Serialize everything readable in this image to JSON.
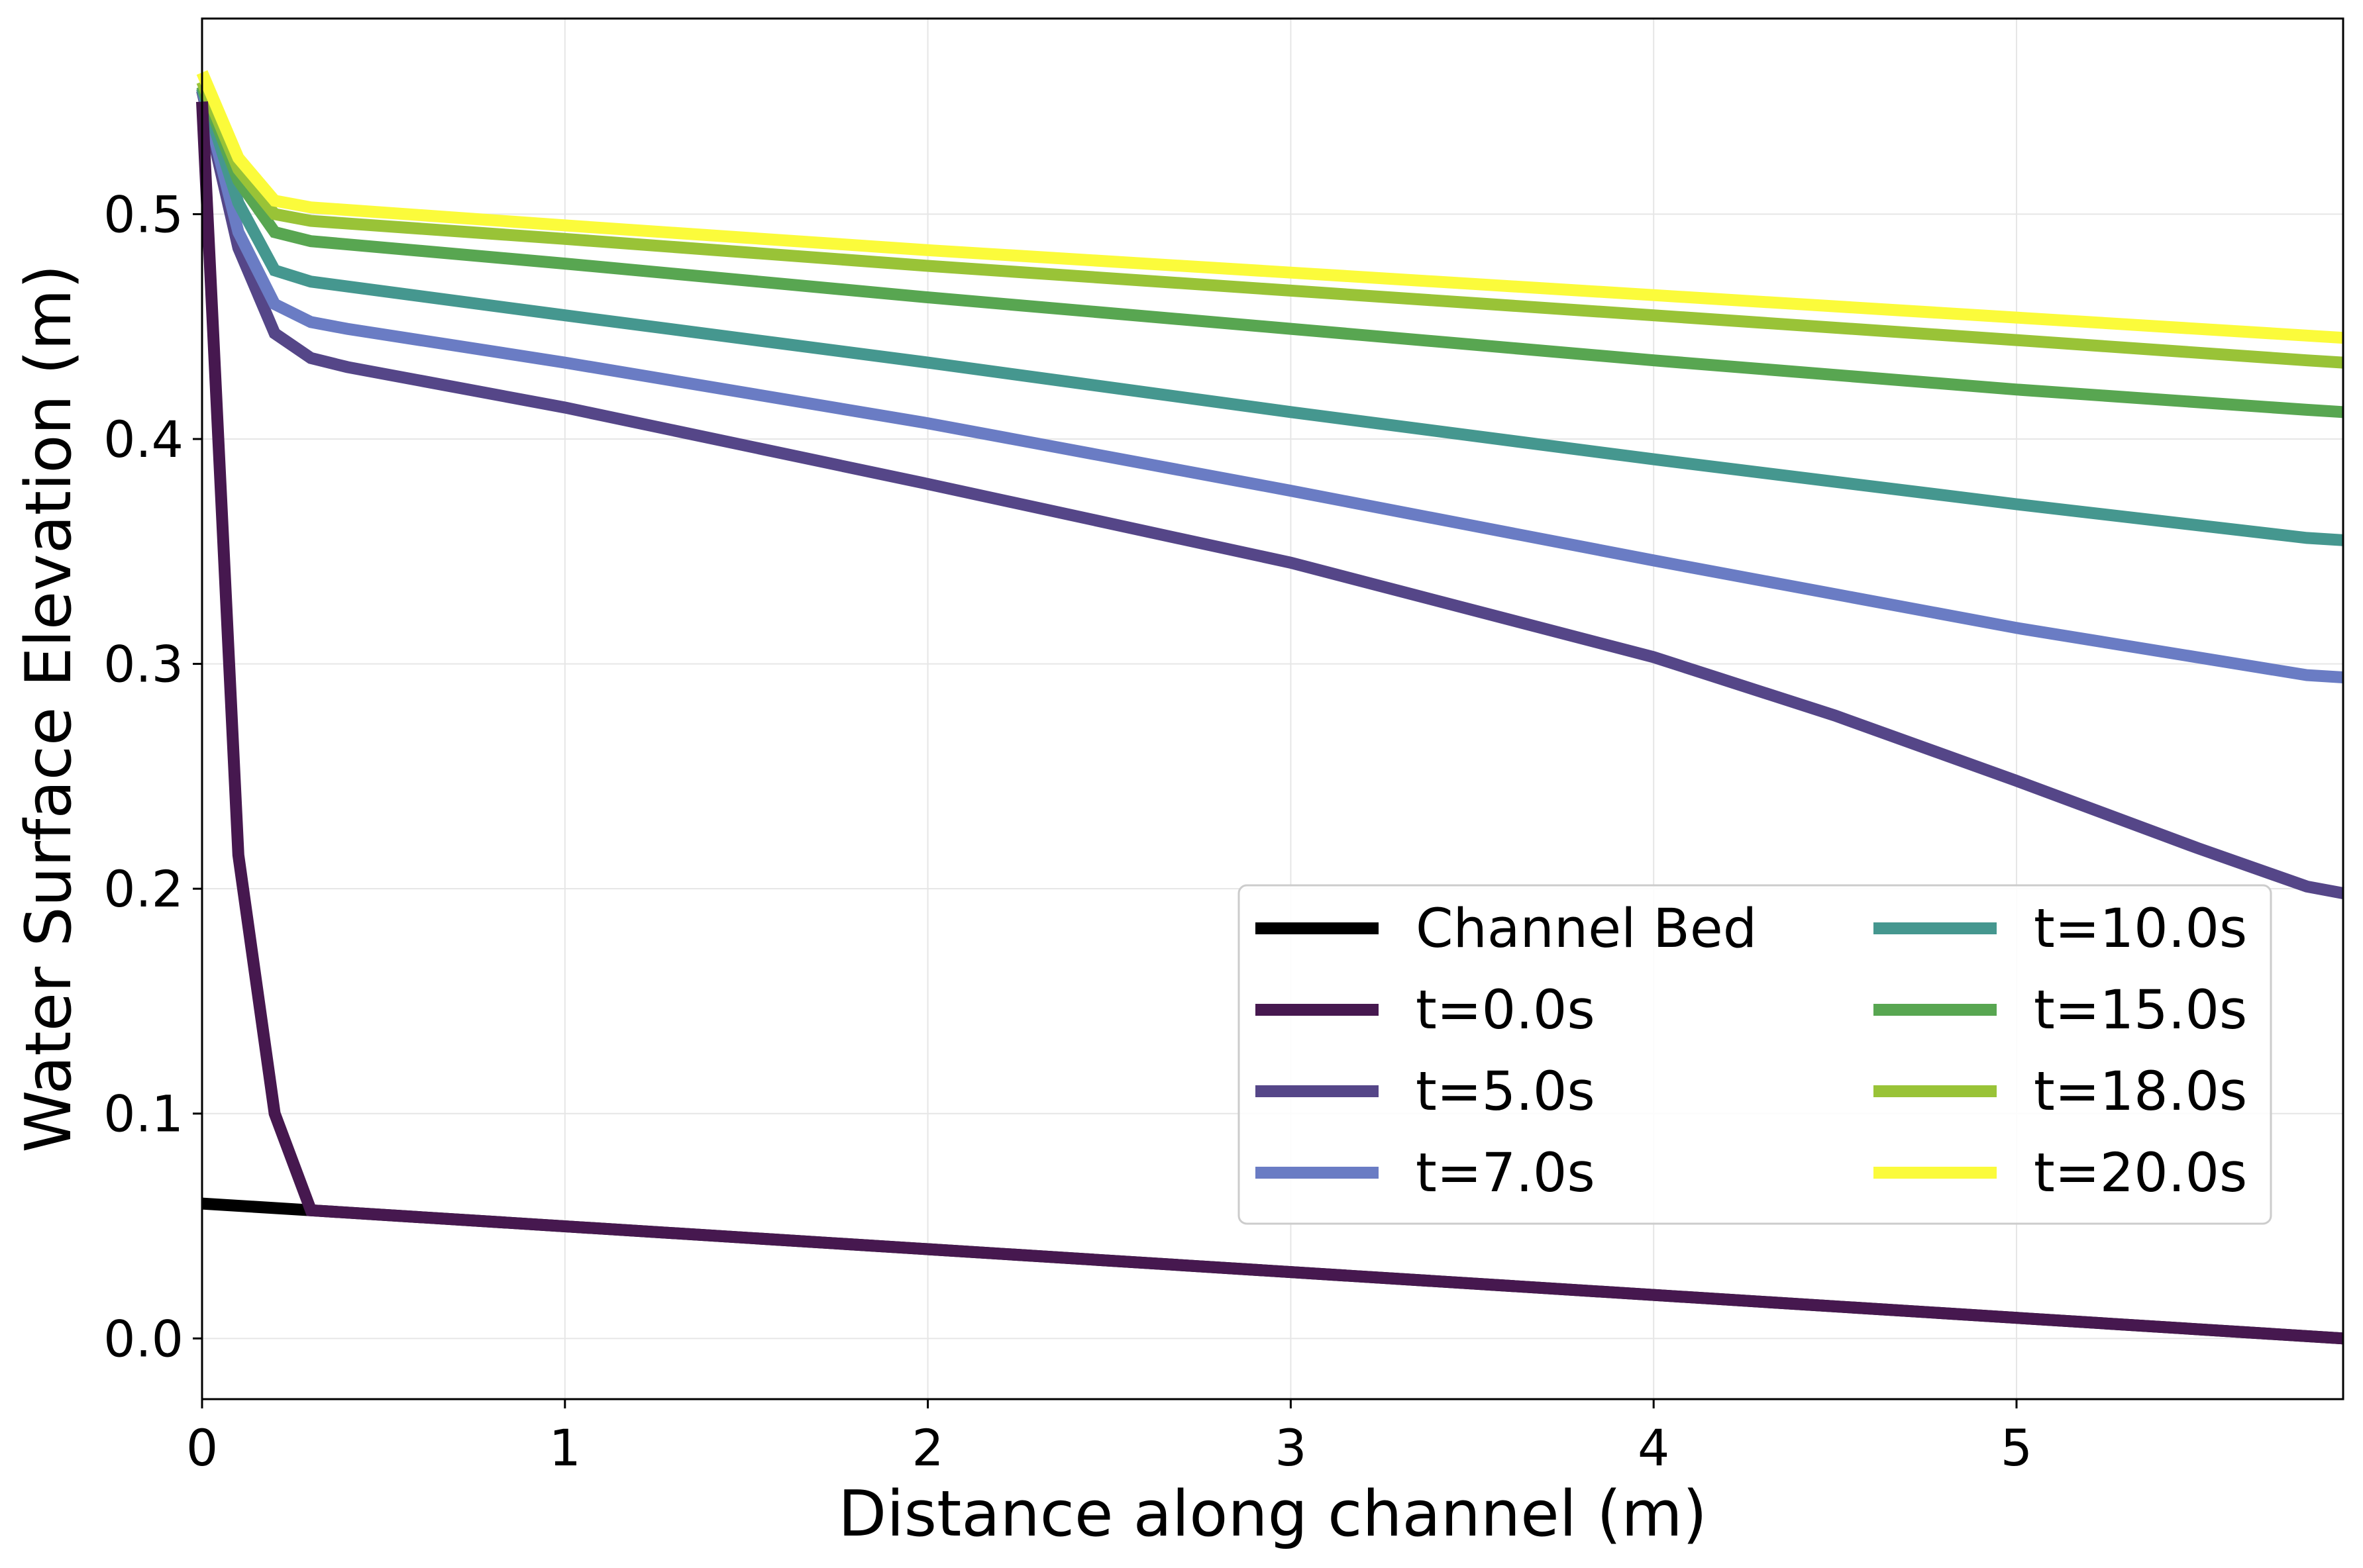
{
  "chart_data": {
    "type": "line",
    "title": "",
    "xlabel": "Distance along channel (m)",
    "ylabel": "Water Surface Elevation (m)",
    "xlim": [
      0,
      5.9
    ],
    "ylim": [
      -0.027,
      0.587
    ],
    "xticks": [
      0,
      1,
      2,
      3,
      4,
      5
    ],
    "yticks": [
      0.0,
      0.1,
      0.2,
      0.3,
      0.4,
      0.5
    ],
    "xtick_labels": [
      "0",
      "1",
      "2",
      "3",
      "4",
      "5"
    ],
    "ytick_labels": [
      "0.0",
      "0.1",
      "0.2",
      "0.3",
      "0.4",
      "0.5"
    ],
    "grid": true,
    "legend": {
      "placement": "lower-right",
      "columns": 2
    },
    "series": [
      {
        "name": "Channel Bed",
        "color": "#000000",
        "x": [
          0,
          0.3,
          5.9
        ],
        "y": [
          0.06,
          0.057,
          0.0
        ]
      },
      {
        "name": "t=0.0s",
        "color": "#46184f",
        "x": [
          0,
          0.1,
          0.2,
          0.3,
          5.9
        ],
        "y": [
          0.55,
          0.215,
          0.1,
          0.057,
          0.0
        ]
      },
      {
        "name": "t=5.0s",
        "color": "#554688",
        "x": [
          0,
          0.1,
          0.2,
          0.3,
          0.4,
          1.0,
          2.0,
          3.0,
          4.0,
          4.5,
          5.0,
          5.5,
          5.8,
          5.9
        ],
        "y": [
          0.555,
          0.485,
          0.447,
          0.436,
          0.432,
          0.414,
          0.38,
          0.345,
          0.303,
          0.277,
          0.248,
          0.218,
          0.201,
          0.198
        ]
      },
      {
        "name": "t=7.0s",
        "color": "#6a7cc4",
        "x": [
          0,
          0.1,
          0.2,
          0.3,
          0.4,
          1.0,
          2.0,
          3.0,
          4.0,
          5.0,
          5.8,
          5.9
        ],
        "y": [
          0.556,
          0.492,
          0.46,
          0.452,
          0.449,
          0.434,
          0.407,
          0.377,
          0.346,
          0.316,
          0.295,
          0.294
        ]
      },
      {
        "name": "t=10.0s",
        "color": "#45978f",
        "x": [
          0,
          0.1,
          0.2,
          0.3,
          1.0,
          2.0,
          3.0,
          4.0,
          5.0,
          5.8,
          5.9
        ],
        "y": [
          0.556,
          0.505,
          0.475,
          0.47,
          0.455,
          0.434,
          0.412,
          0.391,
          0.371,
          0.356,
          0.355
        ]
      },
      {
        "name": "t=15.0s",
        "color": "#58a651",
        "x": [
          0,
          0.1,
          0.2,
          0.3,
          1.0,
          2.0,
          3.0,
          4.0,
          5.0,
          5.8,
          5.9
        ],
        "y": [
          0.557,
          0.515,
          0.492,
          0.488,
          0.478,
          0.463,
          0.449,
          0.435,
          0.422,
          0.413,
          0.412
        ]
      },
      {
        "name": "t=18.0s",
        "color": "#99c337",
        "x": [
          0,
          0.1,
          0.2,
          0.3,
          1.0,
          2.0,
          3.0,
          4.0,
          5.0,
          5.8,
          5.9
        ],
        "y": [
          0.559,
          0.52,
          0.5,
          0.497,
          0.489,
          0.477,
          0.466,
          0.455,
          0.444,
          0.435,
          0.434
        ]
      },
      {
        "name": "t=20.0s",
        "color": "#fbfb3b",
        "x": [
          0,
          0.1,
          0.2,
          0.3,
          1.0,
          2.0,
          3.0,
          4.0,
          5.0,
          5.8,
          5.9
        ],
        "y": [
          0.563,
          0.525,
          0.506,
          0.503,
          0.495,
          0.484,
          0.474,
          0.464,
          0.454,
          0.446,
          0.445
        ]
      }
    ]
  }
}
